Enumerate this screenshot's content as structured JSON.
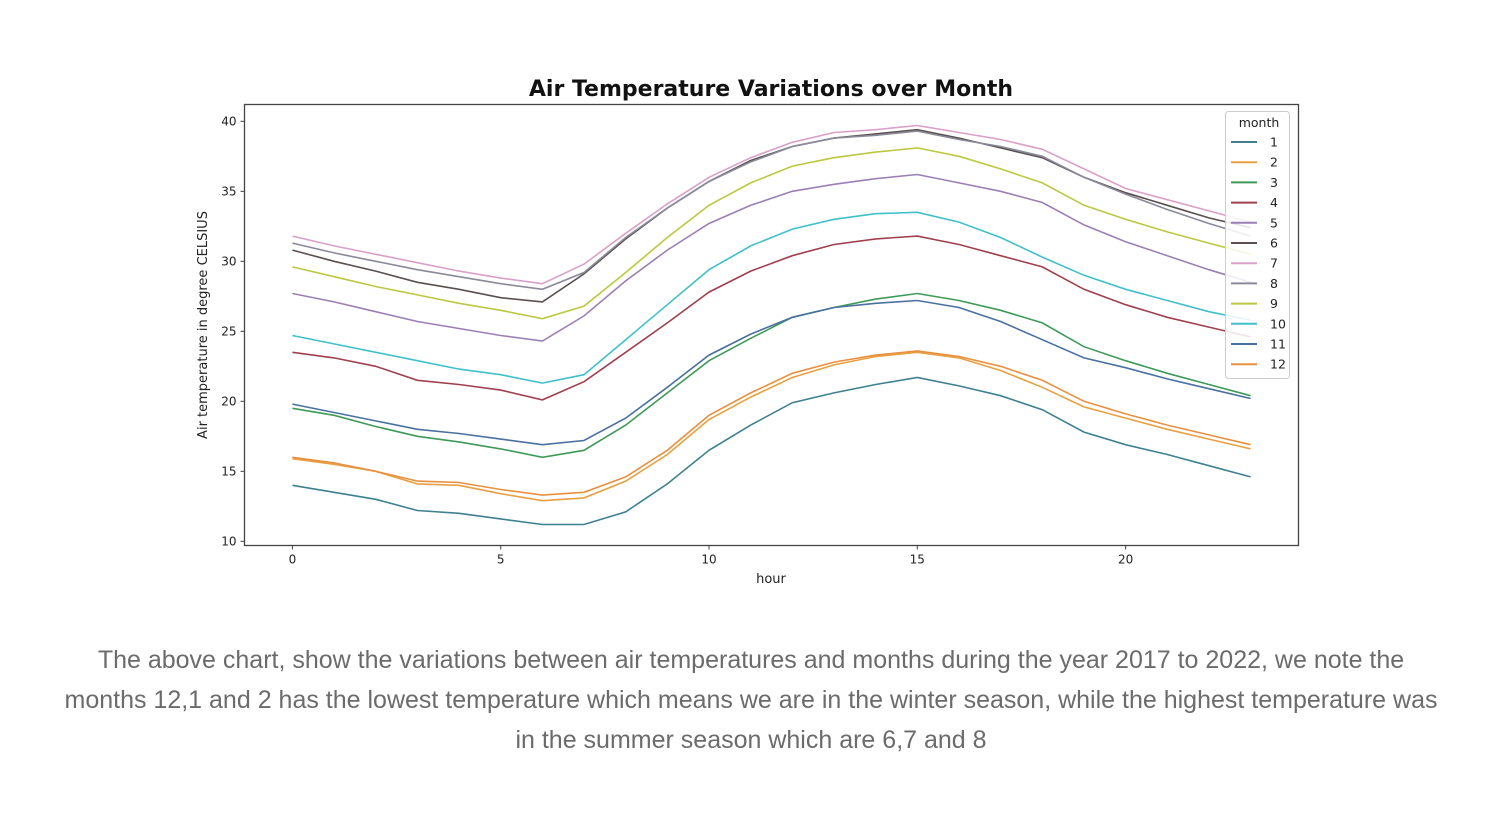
{
  "chart_data": {
    "type": "line",
    "title": "Air Temperature Variations over Month",
    "xlabel": "hour",
    "ylabel": "Air temperature in degree CELSIUS",
    "xlim": [
      -1.15,
      24.15
    ],
    "ylim": [
      9.7,
      41.2
    ],
    "xticks": [
      0,
      5,
      10,
      15,
      20
    ],
    "yticks": [
      10,
      15,
      20,
      25,
      30,
      35,
      40
    ],
    "grid": false,
    "legend": {
      "title": "month",
      "placement": "top-right"
    },
    "x": [
      0,
      1,
      2,
      3,
      4,
      5,
      6,
      7,
      8,
      9,
      10,
      11,
      12,
      13,
      14,
      15,
      16,
      17,
      18,
      19,
      20,
      21,
      22,
      23
    ],
    "series": [
      {
        "name": "1",
        "color": "#3f8090",
        "values": [
          14.0,
          13.5,
          13.0,
          12.2,
          12.0,
          11.6,
          11.2,
          11.2,
          12.1,
          14.1,
          16.5,
          18.3,
          19.9,
          20.6,
          21.2,
          21.7,
          21.1,
          20.4,
          19.4,
          17.8,
          16.9,
          16.2,
          15.4,
          14.6
        ]
      },
      {
        "name": "2",
        "color": "#e8a040",
        "values": [
          15.9,
          15.5,
          15.0,
          14.1,
          14.0,
          13.4,
          12.9,
          13.1,
          14.3,
          16.2,
          18.7,
          20.3,
          21.7,
          22.6,
          23.2,
          23.5,
          23.1,
          22.2,
          21.0,
          19.6,
          18.8,
          18.0,
          17.3,
          16.6
        ]
      },
      {
        "name": "3",
        "color": "#3f9a5a",
        "values": [
          19.5,
          19.0,
          18.2,
          17.5,
          17.1,
          16.6,
          16.0,
          16.5,
          18.3,
          20.6,
          22.9,
          24.5,
          26.0,
          26.7,
          27.3,
          27.7,
          27.2,
          26.5,
          25.6,
          23.9,
          22.9,
          22.0,
          21.2,
          20.4
        ]
      },
      {
        "name": "4",
        "color": "#a0404f",
        "values": [
          23.5,
          23.1,
          22.5,
          21.5,
          21.2,
          20.8,
          20.1,
          21.4,
          23.5,
          25.6,
          27.8,
          29.3,
          30.4,
          31.2,
          31.6,
          31.8,
          31.2,
          30.4,
          29.6,
          28.0,
          26.9,
          26.0,
          25.3,
          24.6
        ]
      },
      {
        "name": "5",
        "color": "#9a80b5",
        "values": [
          27.7,
          27.1,
          26.4,
          25.7,
          25.2,
          24.7,
          24.3,
          26.1,
          28.6,
          30.8,
          32.7,
          34.0,
          35.0,
          35.5,
          35.9,
          36.2,
          35.6,
          35.0,
          34.2,
          32.6,
          31.4,
          30.4,
          29.4,
          28.5
        ]
      },
      {
        "name": "6",
        "color": "#5a5050",
        "values": [
          30.8,
          30.0,
          29.3,
          28.5,
          28.0,
          27.4,
          27.1,
          29.1,
          31.6,
          33.8,
          35.7,
          37.2,
          38.2,
          38.8,
          39.1,
          39.4,
          38.8,
          38.1,
          37.4,
          36.0,
          34.9,
          34.0,
          33.1,
          32.4
        ]
      },
      {
        "name": "7",
        "color": "#d9a0c8",
        "values": [
          31.8,
          31.1,
          30.5,
          29.9,
          29.3,
          28.8,
          28.4,
          29.8,
          32.0,
          34.1,
          36.0,
          37.4,
          38.5,
          39.2,
          39.4,
          39.7,
          39.2,
          38.7,
          38.0,
          36.6,
          35.2,
          34.4,
          33.6,
          32.8
        ]
      },
      {
        "name": "8",
        "color": "#8a8a9a",
        "values": [
          31.3,
          30.6,
          30.0,
          29.4,
          28.9,
          28.4,
          28.0,
          29.2,
          31.7,
          33.8,
          35.7,
          37.1,
          38.2,
          38.8,
          39.0,
          39.3,
          38.7,
          38.2,
          37.5,
          36.0,
          34.8,
          33.7,
          32.7,
          31.8
        ]
      },
      {
        "name": "9",
        "color": "#bcc840",
        "values": [
          29.6,
          28.9,
          28.2,
          27.6,
          27.0,
          26.5,
          25.9,
          26.8,
          29.2,
          31.7,
          34.0,
          35.6,
          36.8,
          37.4,
          37.8,
          38.1,
          37.5,
          36.6,
          35.6,
          34.0,
          33.0,
          32.1,
          31.3,
          30.5
        ]
      },
      {
        "name": "10",
        "color": "#40c0c8",
        "values": [
          24.7,
          24.1,
          23.5,
          22.9,
          22.3,
          21.9,
          21.3,
          21.9,
          24.4,
          26.9,
          29.4,
          31.1,
          32.3,
          33.0,
          33.4,
          33.5,
          32.8,
          31.7,
          30.3,
          29.0,
          28.0,
          27.2,
          26.4,
          25.8
        ]
      },
      {
        "name": "11",
        "color": "#4a70a0",
        "values": [
          19.8,
          19.2,
          18.6,
          18.0,
          17.7,
          17.3,
          16.9,
          17.2,
          18.8,
          21.0,
          23.3,
          24.8,
          26.0,
          26.7,
          27.0,
          27.2,
          26.7,
          25.7,
          24.4,
          23.1,
          22.4,
          21.6,
          20.9,
          20.2
        ]
      },
      {
        "name": "12",
        "color": "#e89040",
        "values": [
          16.0,
          15.6,
          15.0,
          14.3,
          14.2,
          13.7,
          13.3,
          13.5,
          14.6,
          16.5,
          19.0,
          20.6,
          22.0,
          22.8,
          23.3,
          23.6,
          23.2,
          22.5,
          21.5,
          20.0,
          19.1,
          18.3,
          17.6,
          16.9
        ]
      }
    ]
  },
  "caption": "The above chart, show the variations between air temperatures and months during the year 2017 to 2022, we note the months 12,1 and 2 has the lowest temperature which means we are in the winter season, while the highest temperature was in the summer season which are 6,7 and 8"
}
